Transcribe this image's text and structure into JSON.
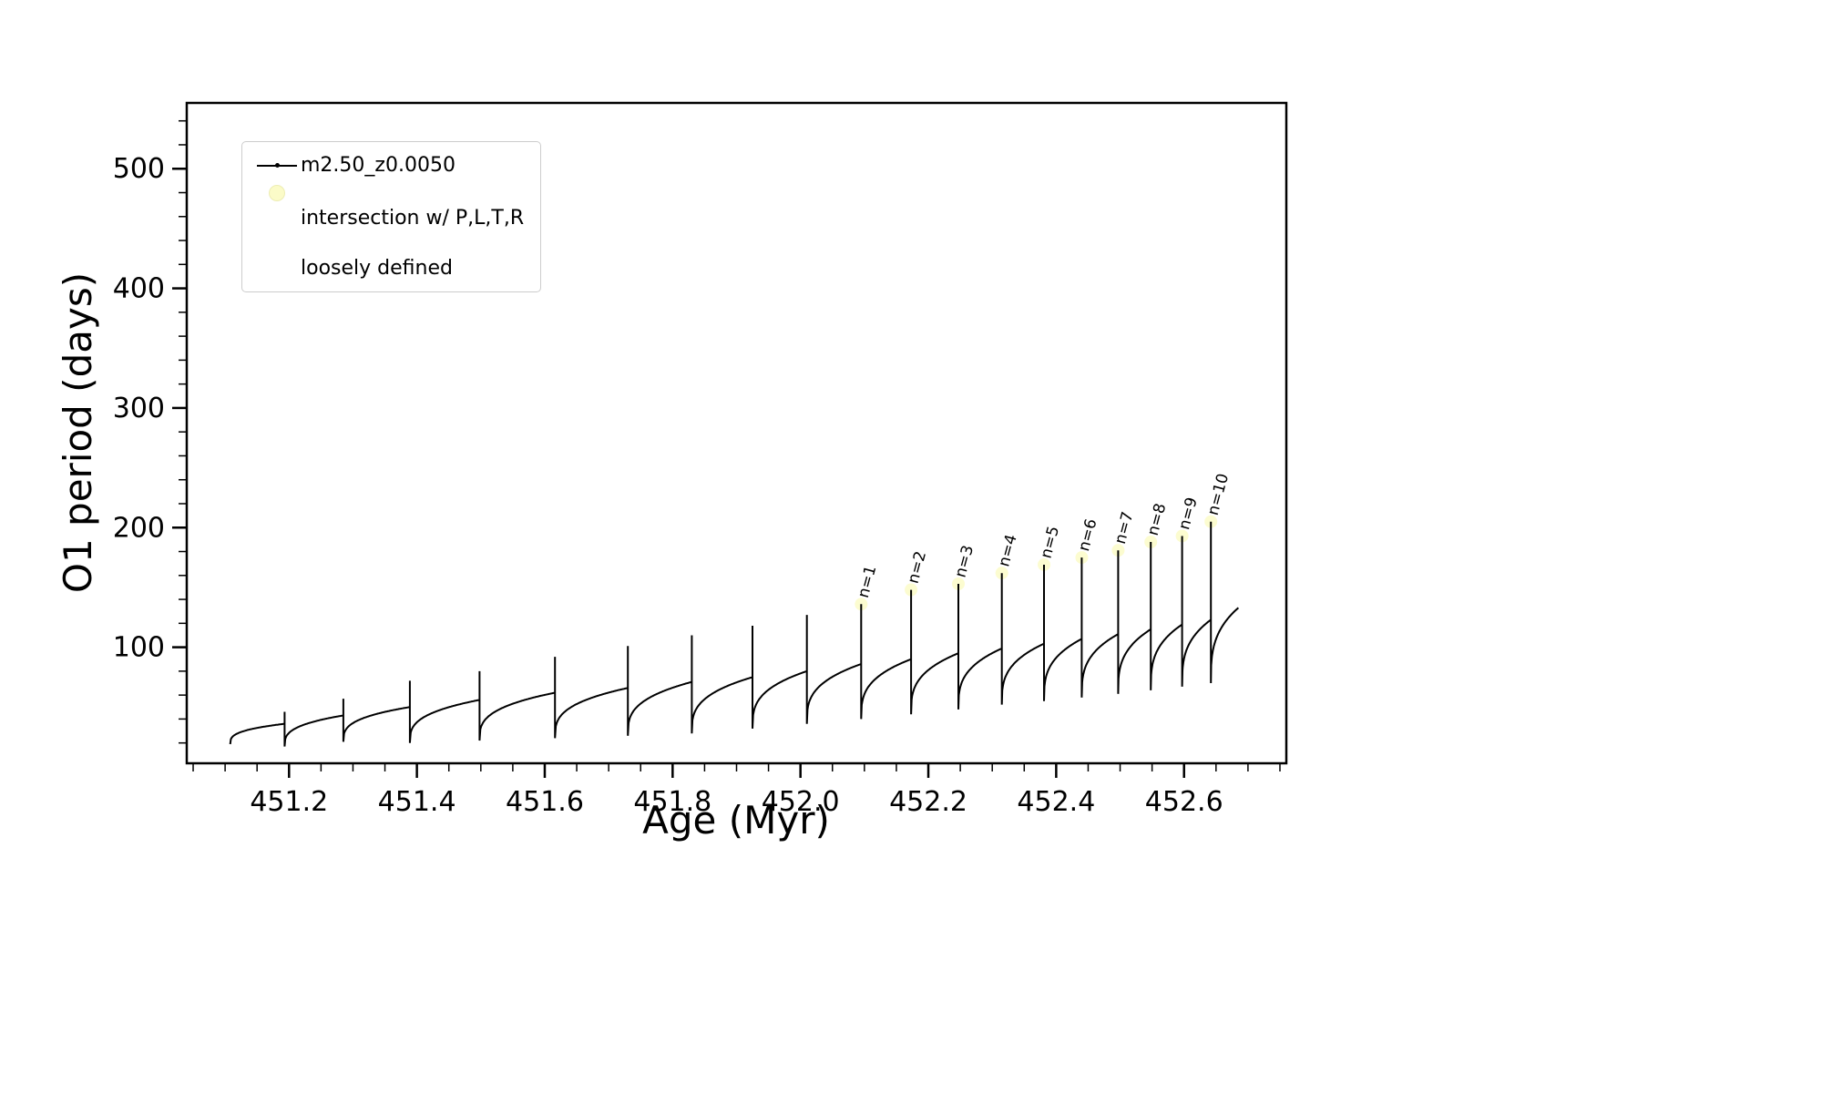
{
  "figure": {
    "xlabel": "Age (Myr)",
    "ylabel": "O1 period (days)"
  },
  "legend": {
    "series_label": "m2.50_z0.0050",
    "intersection_label_line1": "intersection w/ P,L,T,R",
    "intersection_label_line2": "loosely defined"
  },
  "chart_data": {
    "type": "line",
    "title": "",
    "xlabel": "Age (Myr)",
    "ylabel": "O1 period (days)",
    "series_name": "m2.50_z0.0050",
    "line_color": "#000000",
    "intersection_marker_color": "#fbfbc8",
    "xlim": [
      451.04,
      452.76
    ],
    "ylim": [
      3,
      555
    ],
    "x_ticks": [
      451.2,
      451.4,
      451.6,
      451.8,
      452.0,
      452.2,
      452.4,
      452.6
    ],
    "y_ticks": [
      100,
      200,
      300,
      400,
      500
    ],
    "x_minor_step": 0.05,
    "y_minor_step": 20,
    "grid": false,
    "legend_position": "upper-left",
    "segments_note": "sawtooth relaxation-oscillation cycles: each cycle rises from y_start to y_plateau, spikes to y_peak, then drops; labeled spikes are intersections n=1..10",
    "segments": [
      {
        "x_start": 451.108,
        "x_end": 451.193,
        "y_start": 19,
        "y_plateau": 36,
        "y_peak": 46,
        "label": ""
      },
      {
        "x_start": 451.193,
        "x_end": 451.285,
        "y_start": 17,
        "y_plateau": 43,
        "y_peak": 57,
        "label": ""
      },
      {
        "x_start": 451.285,
        "x_end": 451.389,
        "y_start": 21,
        "y_plateau": 50,
        "y_peak": 72,
        "label": ""
      },
      {
        "x_start": 451.389,
        "x_end": 451.498,
        "y_start": 20,
        "y_plateau": 56,
        "y_peak": 80,
        "label": ""
      },
      {
        "x_start": 451.498,
        "x_end": 451.616,
        "y_start": 22,
        "y_plateau": 62,
        "y_peak": 92,
        "label": ""
      },
      {
        "x_start": 451.616,
        "x_end": 451.73,
        "y_start": 24,
        "y_plateau": 66,
        "y_peak": 101,
        "label": ""
      },
      {
        "x_start": 451.73,
        "x_end": 451.83,
        "y_start": 26,
        "y_plateau": 71,
        "y_peak": 110,
        "label": ""
      },
      {
        "x_start": 451.83,
        "x_end": 451.925,
        "y_start": 28,
        "y_plateau": 75,
        "y_peak": 118,
        "label": ""
      },
      {
        "x_start": 451.925,
        "x_end": 452.01,
        "y_start": 32,
        "y_plateau": 80,
        "y_peak": 127,
        "label": ""
      },
      {
        "x_start": 452.01,
        "x_end": 452.095,
        "y_start": 36,
        "y_plateau": 86,
        "y_peak": 136,
        "label": "n=1"
      },
      {
        "x_start": 452.095,
        "x_end": 452.173,
        "y_start": 40,
        "y_plateau": 90,
        "y_peak": 148,
        "label": "n=2"
      },
      {
        "x_start": 452.173,
        "x_end": 452.247,
        "y_start": 44,
        "y_plateau": 95,
        "y_peak": 153,
        "label": "n=3"
      },
      {
        "x_start": 452.247,
        "x_end": 452.315,
        "y_start": 48,
        "y_plateau": 99,
        "y_peak": 162,
        "label": "n=4"
      },
      {
        "x_start": 452.315,
        "x_end": 452.381,
        "y_start": 52,
        "y_plateau": 103,
        "y_peak": 169,
        "label": "n=5"
      },
      {
        "x_start": 452.381,
        "x_end": 452.44,
        "y_start": 55,
        "y_plateau": 107,
        "y_peak": 175,
        "label": "n=6"
      },
      {
        "x_start": 452.44,
        "x_end": 452.497,
        "y_start": 58,
        "y_plateau": 111,
        "y_peak": 181,
        "label": "n=7"
      },
      {
        "x_start": 452.497,
        "x_end": 452.548,
        "y_start": 61,
        "y_plateau": 115,
        "y_peak": 188,
        "label": "n=8"
      },
      {
        "x_start": 452.548,
        "x_end": 452.597,
        "y_start": 64,
        "y_plateau": 119,
        "y_peak": 193,
        "label": "n=9"
      },
      {
        "x_start": 452.597,
        "x_end": 452.642,
        "y_start": 67,
        "y_plateau": 123,
        "y_peak": 205,
        "label": "n=10"
      },
      {
        "x_start": 452.642,
        "x_end": 452.685,
        "y_start": 70,
        "y_plateau": 133,
        "y_peak": null,
        "label": ""
      }
    ]
  }
}
